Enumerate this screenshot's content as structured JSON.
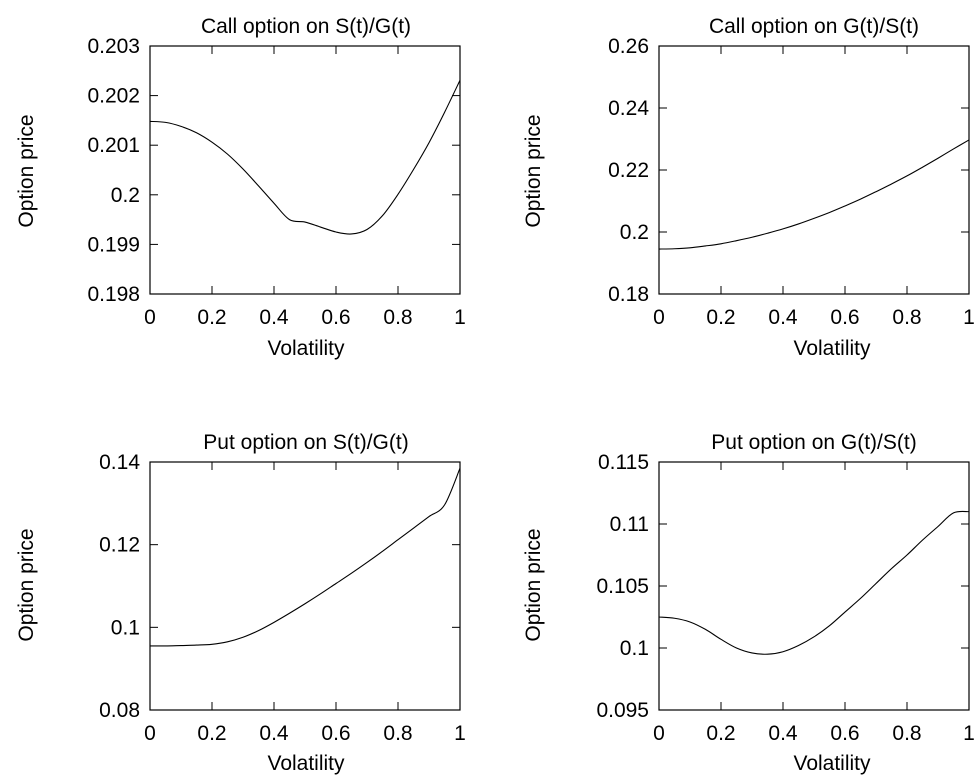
{
  "chart_data": [
    {
      "type": "line",
      "title": "Call option on S(t)/G(t)",
      "xlabel": "Volatility",
      "ylabel": "Option price",
      "xlim": [
        0,
        1
      ],
      "ylim": [
        0.198,
        0.203
      ],
      "xticks": [
        "0",
        "0.2",
        "0.4",
        "0.6",
        "0.8",
        "1"
      ],
      "yticks": [
        "0.198",
        "0.199",
        "0.2",
        "0.201",
        "0.202",
        "0.203"
      ],
      "grid": false,
      "series": [
        {
          "x": [
            0,
            0.05,
            0.1,
            0.15,
            0.2,
            0.25,
            0.3,
            0.35,
            0.4,
            0.45,
            0.5,
            0.55,
            0.6,
            0.65,
            0.7,
            0.75,
            0.8,
            0.85,
            0.9,
            0.95,
            1.0
          ],
          "y": [
            0.20148,
            0.20146,
            0.20138,
            0.20125,
            0.20106,
            0.20082,
            0.20052,
            0.20018,
            0.19983,
            0.1995,
            0.19945,
            0.19935,
            0.19925,
            0.19921,
            0.1993,
            0.19958,
            0.20001,
            0.20051,
            0.20105,
            0.20166,
            0.20231
          ]
        }
      ]
    },
    {
      "type": "line",
      "title": "Call option on G(t)/S(t)",
      "xlabel": "Volatility",
      "ylabel": "Option price",
      "xlim": [
        0,
        1
      ],
      "ylim": [
        0.18,
        0.26
      ],
      "xticks": [
        "0",
        "0.2",
        "0.4",
        "0.6",
        "0.8",
        "1"
      ],
      "yticks": [
        "0.18",
        "0.2",
        "0.22",
        "0.24",
        "0.26"
      ],
      "grid": false,
      "series": [
        {
          "x": [
            0,
            0.05,
            0.1,
            0.15,
            0.2,
            0.25,
            0.3,
            0.35,
            0.4,
            0.45,
            0.5,
            0.55,
            0.6,
            0.65,
            0.7,
            0.75,
            0.8,
            0.85,
            0.9,
            0.95,
            1.0
          ],
          "y": [
            0.1945,
            0.1946,
            0.1949,
            0.1955,
            0.1962,
            0.1972,
            0.1983,
            0.1996,
            0.201,
            0.2026,
            0.2044,
            0.2063,
            0.2084,
            0.2106,
            0.213,
            0.2155,
            0.2181,
            0.2209,
            0.2238,
            0.2268,
            0.2297
          ]
        }
      ]
    },
    {
      "type": "line",
      "title": "Put option on S(t)/G(t)",
      "xlabel": "Volatility",
      "ylabel": "Option price",
      "xlim": [
        0,
        1
      ],
      "ylim": [
        0.08,
        0.14
      ],
      "xticks": [
        "0",
        "0.2",
        "0.4",
        "0.6",
        "0.8",
        "1"
      ],
      "yticks": [
        "0.08",
        "0.1",
        "0.12",
        "0.14"
      ],
      "grid": false,
      "series": [
        {
          "x": [
            0,
            0.05,
            0.1,
            0.15,
            0.2,
            0.25,
            0.3,
            0.35,
            0.4,
            0.45,
            0.5,
            0.55,
            0.6,
            0.65,
            0.7,
            0.75,
            0.8,
            0.85,
            0.9,
            0.95,
            1.0
          ],
          "y": [
            0.0955,
            0.0955,
            0.0956,
            0.0957,
            0.0959,
            0.0965,
            0.0976,
            0.0992,
            0.1012,
            0.1034,
            0.1057,
            0.1081,
            0.1106,
            0.1131,
            0.1157,
            0.1184,
            0.1212,
            0.124,
            0.1268,
            0.1296,
            0.1385
          ]
        }
      ]
    },
    {
      "type": "line",
      "title": "Put option on G(t)/S(t)",
      "xlabel": "Volatility",
      "ylabel": "Option price",
      "xlim": [
        0,
        1
      ],
      "ylim": [
        0.095,
        0.115
      ],
      "xticks": [
        "0",
        "0.2",
        "0.4",
        "0.6",
        "0.8",
        "1"
      ],
      "yticks": [
        "0.095",
        "0.1",
        "0.105",
        "0.11",
        "0.115"
      ],
      "grid": false,
      "series": [
        {
          "x": [
            0,
            0.05,
            0.1,
            0.15,
            0.2,
            0.25,
            0.3,
            0.35,
            0.4,
            0.45,
            0.5,
            0.55,
            0.6,
            0.65,
            0.7,
            0.75,
            0.8,
            0.85,
            0.9,
            0.95,
            1.0
          ],
          "y": [
            0.1025,
            0.1024,
            0.1021,
            0.1015,
            0.1007,
            0.1,
            0.0996,
            0.0995,
            0.0997,
            0.1002,
            0.1009,
            0.1018,
            0.1029,
            0.104,
            0.1052,
            0.1064,
            0.1075,
            0.1087,
            0.1098,
            0.1109,
            0.111
          ]
        }
      ]
    }
  ]
}
